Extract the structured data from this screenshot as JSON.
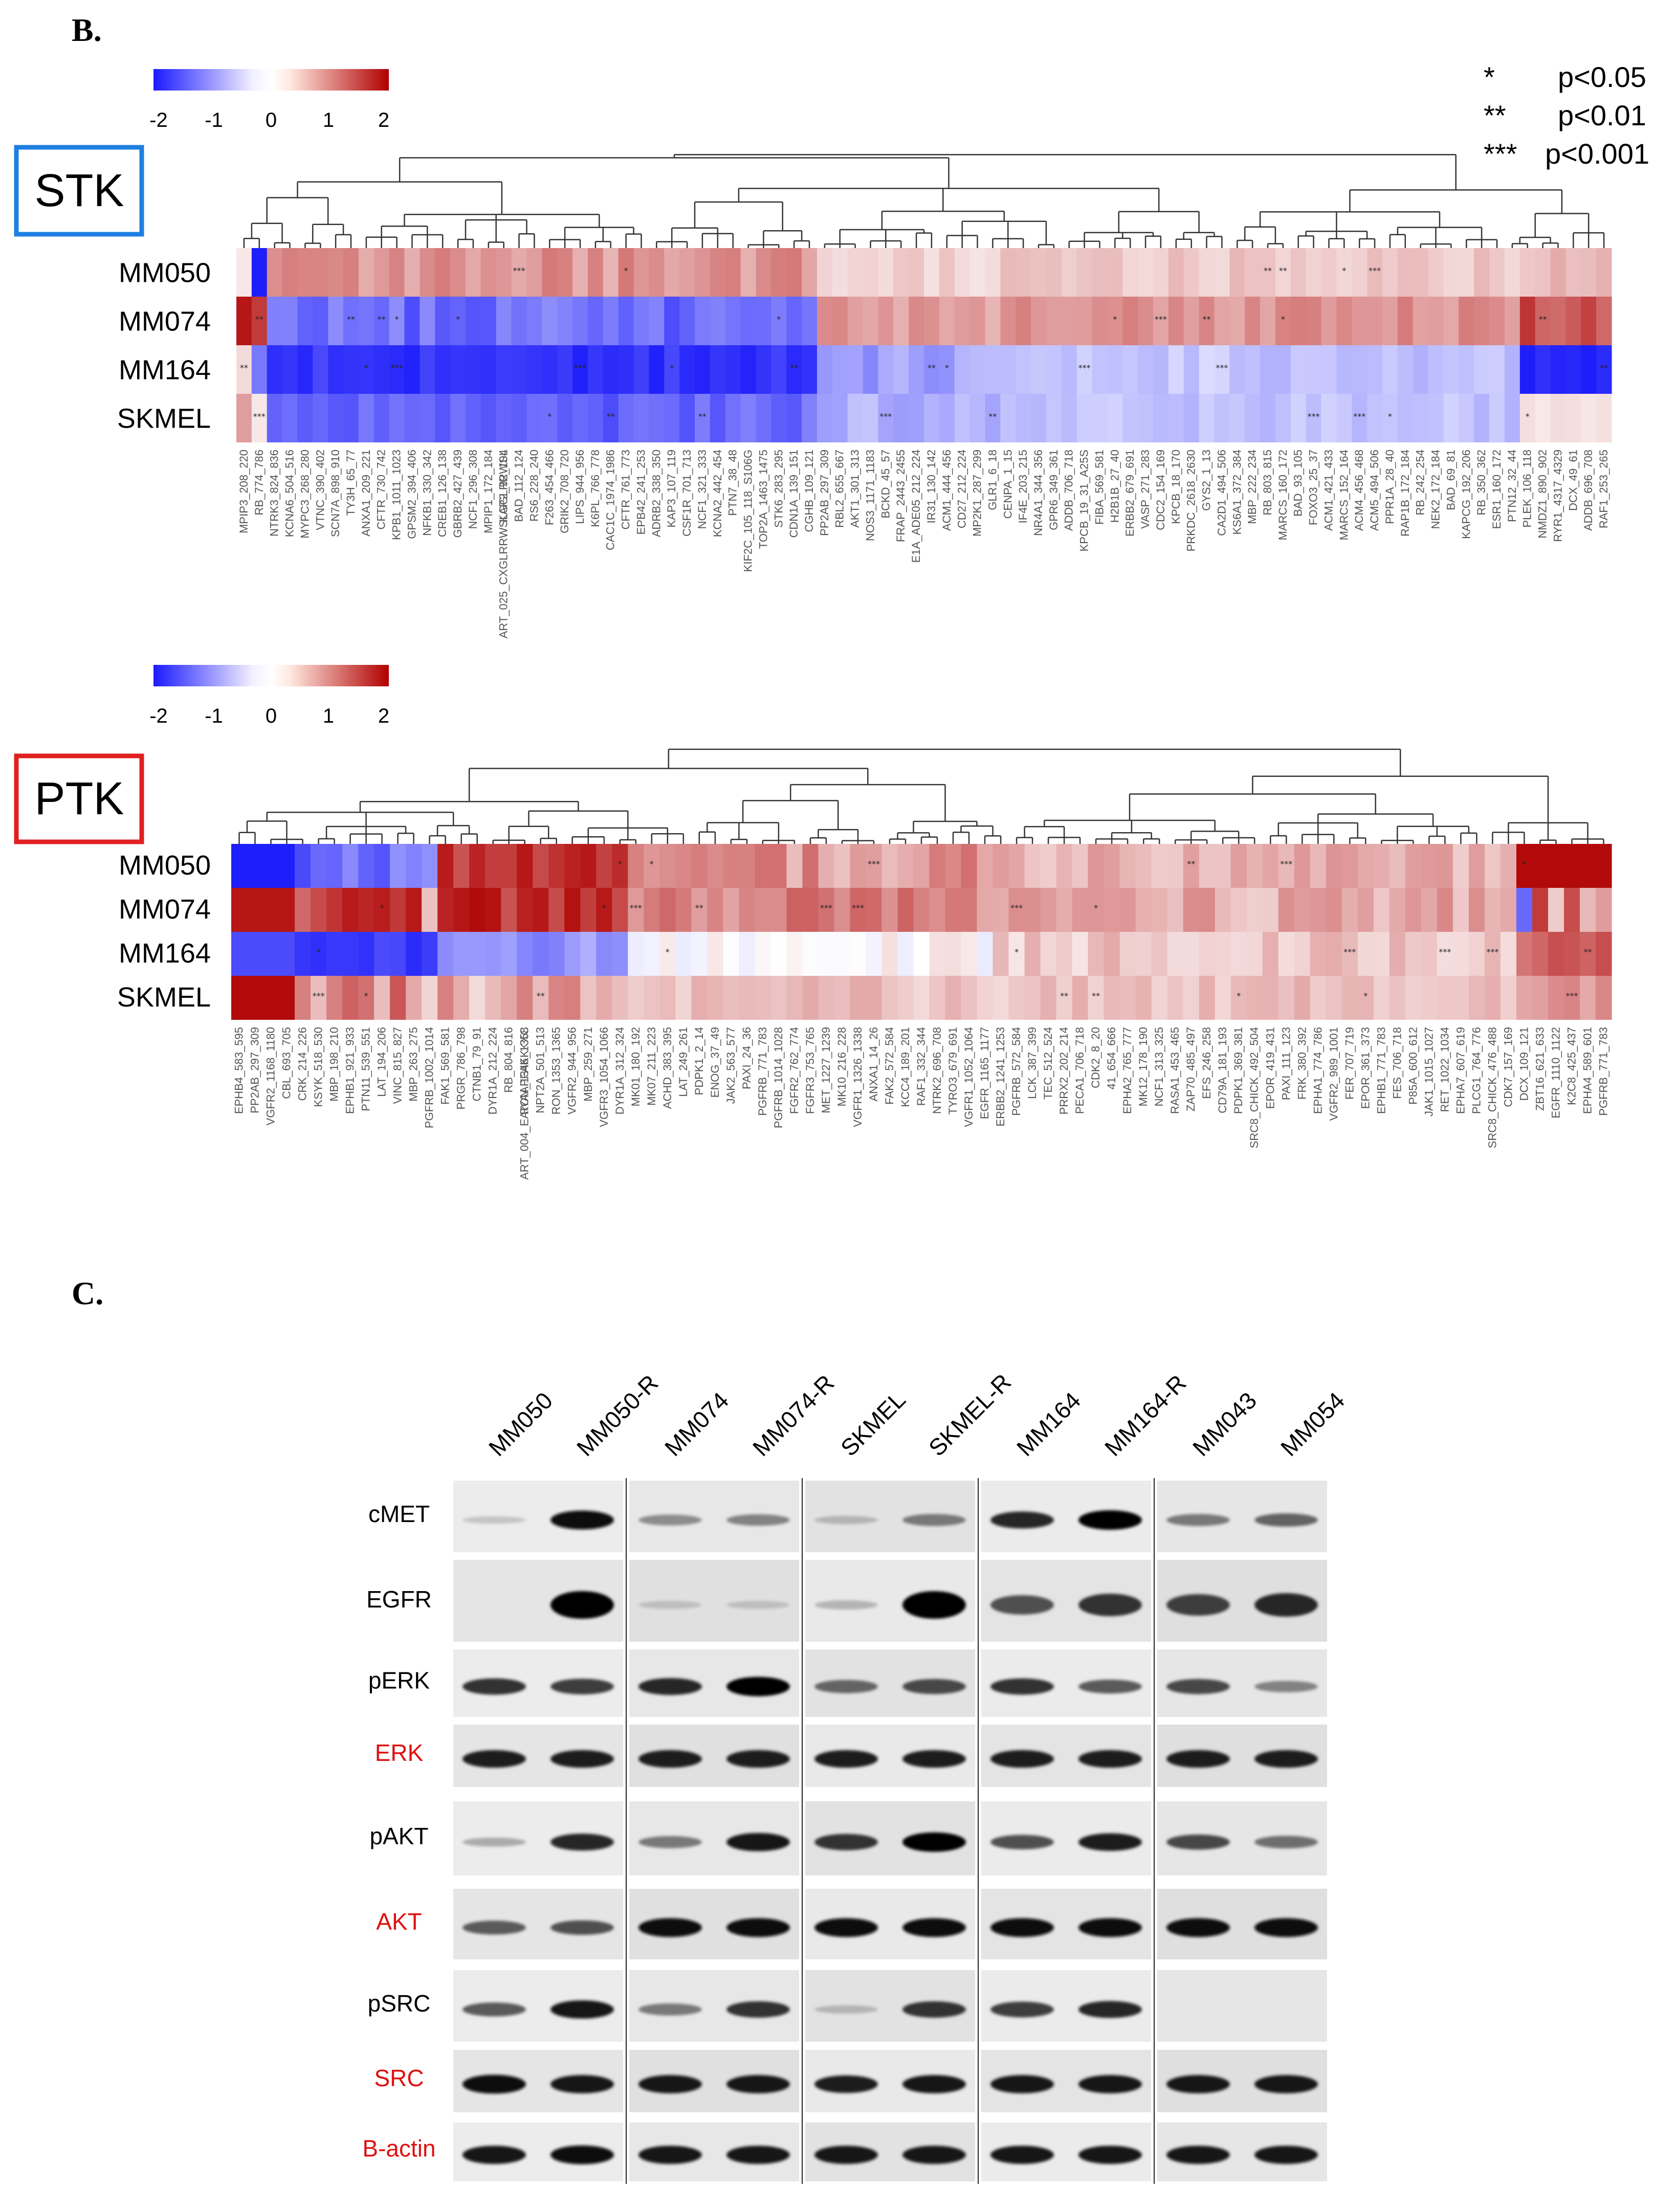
{
  "panels": {
    "b_label": "B.",
    "c_label": "C."
  },
  "significance": [
    {
      "stars": "*",
      "text": "p<0.05"
    },
    {
      "stars": "**",
      "text": "p<0.01"
    },
    {
      "stars": "***",
      "text": "p<0.001"
    }
  ],
  "colorbar": {
    "ticks": [
      "-2",
      "-1",
      "0",
      "1",
      "2"
    ],
    "low_color": "#1a1aff",
    "mid_color": "#ffffff",
    "high_color": "#b00000"
  },
  "stk": {
    "tag": "STK",
    "tag_color": "#1e7fe0",
    "samples": [
      "MM050",
      "MM074",
      "MM164",
      "SKMEL"
    ],
    "peptides": [
      "MPIP3_208_220",
      "RB_774_786",
      "NTRK3_824_836",
      "KCNA6_504_516",
      "MYPC3_268_280",
      "VTNC_390_402",
      "SCN7A_898_910",
      "TY3H_65_77",
      "ANXA1_209_221",
      "CFTR_730_742",
      "KPB1_1011_1023",
      "GPSM2_394_406",
      "NFKB1_330_342",
      "CREB1_126_138",
      "GBRB2_427_439",
      "NCF1_296_308",
      "MPIP1_172_184",
      "KAP2_92_104",
      "BAD_112_124",
      "RS6_228_240",
      "F263_454_466",
      "GRIK2_708_720",
      "LIPS_944_956",
      "K6PL_766_778",
      "CAC1C_1974_1986",
      "CFTR_761_773",
      "EPB42_241_253",
      "ADRB2_338_350",
      "KAP3_107_119",
      "CSF1R_701_713",
      "NCF1_321_333",
      "KCNA2_442_454",
      "PTN7_38_48",
      "KIF2C_105_118_S106G",
      "TOP2A_1463_1475",
      "STK6_283_295",
      "CDN1A_139_151",
      "CGHB_109_121",
      "PP2AB_297_309",
      "RBL2_655_667",
      "AKT1_301_313",
      "NOS3_1171_1183",
      "BCKD_45_57",
      "FRAP_2443_2455",
      "E1A_ADE05_212_224",
      "IR31_130_142",
      "ACM1_444_456",
      "CD27_212_224",
      "MP2K1_287_299",
      "GLR1_6_18",
      "CENPA_1_15",
      "IF4E_203_215",
      "NR4A1_344_356",
      "GPR6_349_361",
      "ADDB_706_718",
      "KPCB_19_31_A25S",
      "FIBA_569_581",
      "H2B1B_27_40",
      "ERBB2_679_691",
      "VASP_271_283",
      "CDC2_154_169",
      "KPCB_18_170",
      "PRKDC_2618_2630",
      "GYS2_1_13",
      "CA2D1_494_506",
      "KS6A1_372_384",
      "MBP_222_234",
      "RB_803_815",
      "MARCS_160_172",
      "BAD_93_105",
      "FOXO3_25_37",
      "ACM1_421_433",
      "MARCS_152_164",
      "ACM4_456_468",
      "ACM5_494_506",
      "PPR1A_28_40",
      "RAP1B_172_184",
      "RB_242_254",
      "NEK2_172_184",
      "BAD_69_81",
      "KAPCG_192_206",
      "RB_350_362",
      "ESR1_160_172",
      "PTN12_32_44",
      "PLEK_106_118",
      "NMDZ1_890_902",
      "RYR1_4317_4329",
      "DCX_49_61",
      "ADDB_696_708",
      "RAF1_253_265"
    ],
    "extra_label": "ART_025_CXGLRRWSLGGLRRWSL"
  },
  "ptk": {
    "tag": "PTK",
    "tag_color": "#e02020",
    "samples": [
      "MM050",
      "MM074",
      "MM164",
      "SKMEL"
    ],
    "peptides": [
      "EPHB4_583_595",
      "PP2AB_297_309",
      "VGFR2_1168_1180",
      "CBL_693_705",
      "CRK_214_226",
      "KSYK_518_530",
      "MBP_198_210",
      "EPHB1_921_933",
      "PTN11_539_551",
      "LAT_194_206",
      "VINC_815_827",
      "MBP_263_275",
      "PGFRB_1002_1014",
      "FAK1_569_581",
      "PRGR_786_798",
      "CTNB1_79_91",
      "DYR1A_212_224",
      "RB_804_816",
      "RON_1346_1358",
      "NPT2A_501_513",
      "RON_1353_1365",
      "VGFR2_944_956",
      "MBP_259_271",
      "VGFR3_1054_1066",
      "DYR1A_312_324",
      "MK01_180_192",
      "MK07_211_223",
      "ACHD_383_395",
      "LAT_249_261",
      "PDPK1_2_14",
      "ENOG_37_49",
      "JAK2_563_577",
      "PAXI_24_36",
      "PGFRB_771_783",
      "PGFRB_1014_1028",
      "FGFR2_762_774",
      "FGFR3_753_765",
      "MET_1227_1239",
      "MK10_216_228",
      "VGFR1_1326_1338",
      "ANXA1_14_26",
      "FAK2_572_584",
      "KCC4_189_201",
      "RAF1_332_344",
      "NTRK2_696_708",
      "TYRO3_679_691",
      "VGFR1_1052_1064",
      "EGFR_1165_1177",
      "ERBB2_1241_1253",
      "PGFRB_572_584",
      "LCK_387_399",
      "TEC_512_524",
      "PRRX2_202_214",
      "PECA1_706_718",
      "CDK2_8_20",
      "41_654_666",
      "EPHA2_765_777",
      "MK12_178_190",
      "NCF1_313_325",
      "RASA1_453_465",
      "ZAP70_485_497",
      "EFS_246_258",
      "CD79A_181_193",
      "PDPK1_369_381",
      "SRC8_CHICK_492_504",
      "EPOR_419_431",
      "PAXI_111_123",
      "FRK_380_392",
      "EPHA1_774_786",
      "VGFR2_989_1001",
      "FER_707_719",
      "EPOR_361_373",
      "EPHB1_771_783",
      "FES_706_718",
      "P85A_600_612",
      "JAK1_1015_1027",
      "RET_1022_1034",
      "EPHA7_607_619",
      "PLCG1_764_776",
      "SRC8_CHICK_476_488",
      "CDK7_157_169",
      "DCX_109_121",
      "ZBT16_621_633",
      "EGFR_1110_1122",
      "K2C8_425_437",
      "EPHA4_589_601",
      "PGFRB_771_783"
    ],
    "extra_label": "ART_004_EAIYAAPFAKKKXC"
  },
  "western_blot": {
    "lanes": [
      "MM050",
      "MM050-R",
      "MM074",
      "MM074-R",
      "SKMEL",
      "SKMEL-R",
      "MM164",
      "MM164-R",
      "MM043",
      "MM054"
    ],
    "proteins": [
      {
        "name": "cMET",
        "color": "#000000"
      },
      {
        "name": "EGFR",
        "color": "#000000"
      },
      {
        "name": "pERK",
        "color": "#000000"
      },
      {
        "name": "ERK",
        "color": "#e01010"
      },
      {
        "name": "pAKT",
        "color": "#000000"
      },
      {
        "name": "AKT",
        "color": "#e01010"
      },
      {
        "name": "pSRC",
        "color": "#000000"
      },
      {
        "name": "SRC",
        "color": "#e01010"
      },
      {
        "name": "B-actin",
        "color": "#e01010"
      }
    ]
  }
}
